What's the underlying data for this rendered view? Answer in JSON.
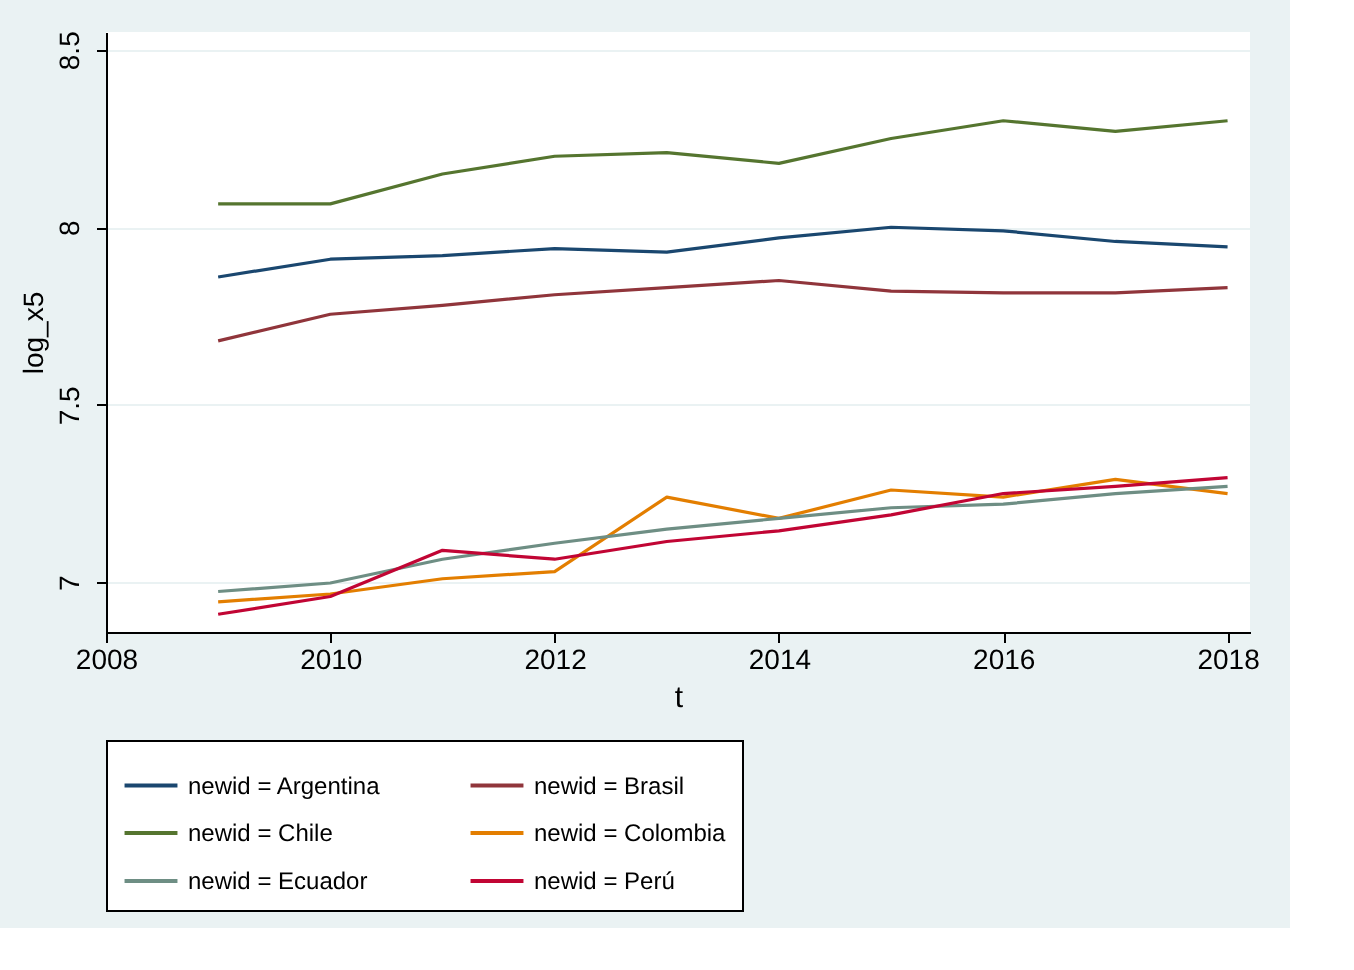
{
  "chart_data": {
    "type": "line",
    "xlabel": "t",
    "ylabel": "log_x5",
    "x": [
      2009,
      2010,
      2011,
      2012,
      2013,
      2014,
      2015,
      2016,
      2017,
      2018
    ],
    "xlim": [
      2008,
      2018.2
    ],
    "xticks": [
      2008,
      2010,
      2012,
      2014,
      2016,
      2018
    ],
    "ylim": [
      6.86,
      8.55
    ],
    "yticks": [
      7,
      7.5,
      8,
      8.5
    ],
    "grid": "y",
    "legend": "bottom",
    "marker": "none",
    "line_style": "solid",
    "series": [
      {
        "name": "newid = Argentina",
        "color": "#1a476f",
        "values": [
          7.86,
          7.91,
          7.92,
          7.94,
          7.93,
          7.97,
          8.0,
          7.99,
          7.96,
          7.945
        ]
      },
      {
        "name": "newid = Brasil",
        "color": "#90353b",
        "values": [
          7.68,
          7.755,
          7.78,
          7.81,
          7.83,
          7.85,
          7.82,
          7.815,
          7.815,
          7.83
        ]
      },
      {
        "name": "newid = Chile",
        "color": "#55752f",
        "values": [
          8.066,
          8.066,
          8.15,
          8.2,
          8.21,
          8.18,
          8.25,
          8.3,
          8.27,
          8.3
        ]
      },
      {
        "name": "newid = Colombia",
        "color": "#e37e00",
        "values": [
          6.945,
          6.967,
          7.01,
          7.03,
          7.24,
          7.18,
          7.26,
          7.24,
          7.29,
          7.25
        ]
      },
      {
        "name": "newid = Ecuador",
        "color": "#6e8e84",
        "values": [
          6.974,
          6.998,
          7.065,
          7.11,
          7.15,
          7.18,
          7.21,
          7.22,
          7.25,
          7.27
        ]
      },
      {
        "name": "newid = Perú",
        "color": "#c10534",
        "values": [
          6.91,
          6.96,
          7.09,
          7.065,
          7.115,
          7.145,
          7.19,
          7.25,
          7.27,
          7.295
        ]
      }
    ]
  }
}
